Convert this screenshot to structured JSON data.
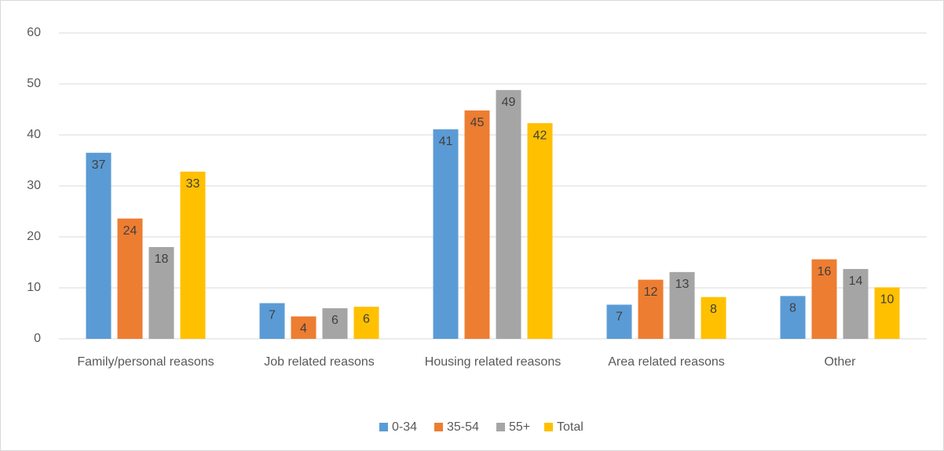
{
  "chart_data": {
    "type": "bar",
    "categories": [
      "Family/personal reasons",
      "Job related reasons",
      "Housing related reasons",
      "Area related reasons",
      "Other"
    ],
    "series": [
      {
        "name": "0-34",
        "color": "#5b9bd5",
        "values": [
          36.5,
          7,
          41.1,
          6.7,
          8.4
        ],
        "value_labels": [
          "37",
          "7",
          "41",
          "7",
          "8"
        ]
      },
      {
        "name": "35-54",
        "color": "#ed7d31",
        "values": [
          23.6,
          4.4,
          44.8,
          11.6,
          15.6
        ],
        "value_labels": [
          "24",
          "4",
          "45",
          "12",
          "16"
        ]
      },
      {
        "name": "55+",
        "color": "#a5a5a5",
        "values": [
          18,
          6,
          48.8,
          13.1,
          13.7
        ],
        "value_labels": [
          "18",
          "6",
          "49",
          "13",
          "14"
        ]
      },
      {
        "name": "Total",
        "color": "#ffc000",
        "values": [
          32.8,
          6.3,
          42.3,
          8.2,
          10.1
        ],
        "value_labels": [
          "33",
          "6",
          "42",
          "8",
          "10"
        ]
      }
    ],
    "ylim": [
      0,
      60
    ],
    "yticks": [
      0,
      10,
      20,
      30,
      40,
      50,
      60
    ],
    "grid": true,
    "legend": "bottom"
  }
}
